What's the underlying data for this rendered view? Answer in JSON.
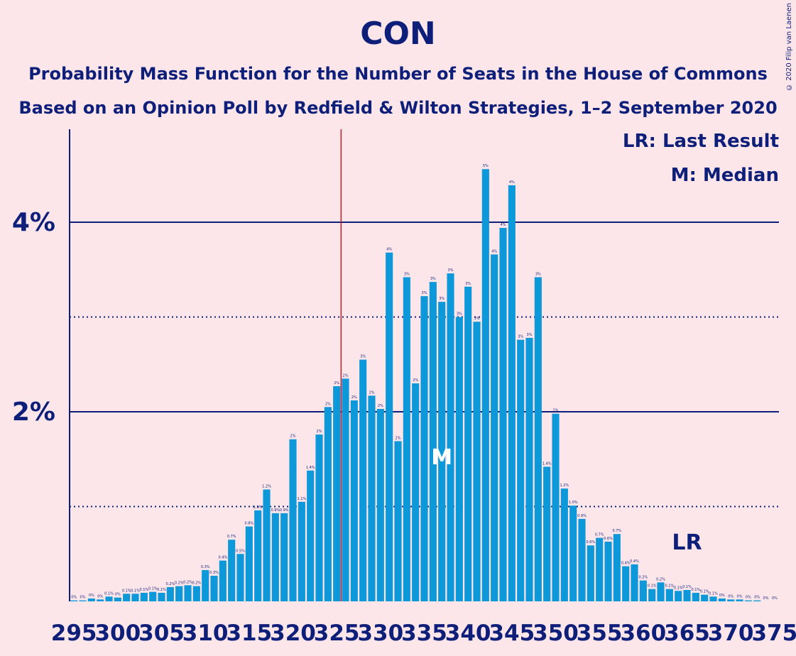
{
  "title": "CON",
  "subtitle1": "Probability Mass Function for the Number of Seats in the House of Commons",
  "subtitle2": "Based on an Opinion Poll by Redfield & Wilton Strategies, 1–2 September 2020",
  "copyright": "© 2020 Filip van Laenen",
  "legend": {
    "lr": "LR: Last Result",
    "m": "M: Median"
  },
  "markers": {
    "median_label": "M",
    "last_result_label": "LR"
  },
  "colors": {
    "bar": "#0d98da",
    "axis": "#0e1f7a",
    "majority_line": "#cc1a2a",
    "background": "#fde6ea"
  },
  "chart_data": {
    "type": "bar",
    "x_start": 295,
    "x_end": 375,
    "x_tick_labels": [
      "295",
      "300",
      "305",
      "310",
      "315",
      "320",
      "325",
      "330",
      "335",
      "340",
      "345",
      "350",
      "355",
      "360",
      "365",
      "370",
      "375"
    ],
    "y_tick_labels": [
      "2%",
      "4%"
    ],
    "ylim": [
      0,
      4.9
    ],
    "majority_line_x": 326,
    "median_x": 337,
    "last_result_x": 365,
    "values": [
      0.01,
      0.01,
      0.03,
      0.02,
      0.05,
      0.04,
      0.08,
      0.08,
      0.09,
      0.1,
      0.09,
      0.15,
      0.16,
      0.17,
      0.16,
      0.33,
      0.27,
      0.43,
      0.65,
      0.5,
      0.79,
      0.96,
      1.18,
      0.93,
      0.93,
      1.71,
      1.05,
      1.38,
      1.76,
      2.05,
      2.27,
      2.35,
      2.12,
      2.55,
      2.17,
      2.03,
      3.68,
      1.69,
      3.42,
      2.3,
      3.22,
      3.37,
      3.16,
      3.46,
      3.0,
      3.32,
      2.95,
      4.56,
      3.66,
      3.94,
      4.39,
      2.76,
      2.78,
      3.42,
      1.42,
      1.98,
      1.19,
      1.01,
      0.87,
      0.59,
      0.67,
      0.63,
      0.71,
      0.37,
      0.39,
      0.22,
      0.13,
      0.2,
      0.13,
      0.11,
      0.12,
      0.09,
      0.07,
      0.05,
      0.03,
      0.02,
      0.02,
      0.01,
      0.01,
      0.0,
      0.0
    ],
    "labels": [
      "0%",
      "0%",
      "0%",
      "0%",
      "0.1%",
      "0%",
      "0.1%",
      "0.1%",
      "0.1%",
      "0.1%",
      "0.1%",
      "0.2%",
      "0.2%",
      "0.2%",
      "0.2%",
      "0.3%",
      "0.3%",
      "0.4%",
      "0.7%",
      "0.5%",
      "0.8%",
      "1.0%",
      "1.2%",
      "0.9%",
      "0.9%",
      "2%",
      "1.1%",
      "1.4%",
      "2%",
      "2%",
      "2%",
      "2%",
      "2%",
      "3%",
      "2%",
      "2%",
      "4%",
      "2%",
      "3%",
      "2%",
      "3%",
      "3%",
      "3%",
      "3%",
      "3%",
      "3%",
      "3%",
      "5%",
      "4%",
      "4%",
      "4%",
      "3%",
      "3%",
      "3%",
      "1.4%",
      "2%",
      "1.2%",
      "1.0%",
      "0.9%",
      "0.6%",
      "0.7%",
      "0.6%",
      "0.7%",
      "0.4%",
      "0.4%",
      "0.2%",
      "0.1%",
      "0.2%",
      "0.1%",
      "0.1%",
      "0.1%",
      "0.1%",
      "0.1%",
      "0.1%",
      "0%",
      "0%",
      "0%",
      "0%",
      "0%",
      "0%",
      "0%"
    ]
  }
}
